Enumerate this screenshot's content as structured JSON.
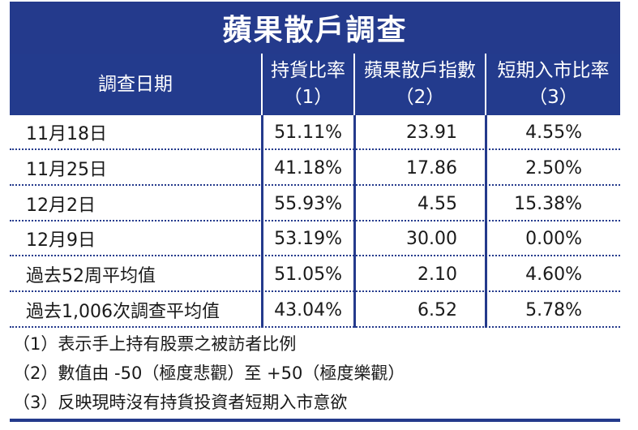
{
  "title": "蘋果散戶調查",
  "headers": [
    {
      "line1": "調查日期",
      "line2": ""
    },
    {
      "line1": "持貨比率",
      "line2": "（1）"
    },
    {
      "line1": "蘋果散戶指數",
      "line2": "（2）"
    },
    {
      "line1": "短期入市比率",
      "line2": "（3）"
    }
  ],
  "rows": [
    {
      "date": "11月18日",
      "holding": "51.11%",
      "index": "23.91",
      "short_term": "4.55%"
    },
    {
      "date": "11月25日",
      "holding": "41.18%",
      "index": "17.86",
      "short_term": "2.50%"
    },
    {
      "date": "12月2日",
      "holding": "55.93%",
      "index": "4.55",
      "short_term": "15.38%"
    },
    {
      "date": "12月9日",
      "holding": "53.19%",
      "index": "30.00",
      "short_term": "0.00%"
    },
    {
      "date": "過去52周平均值",
      "holding": "51.05%",
      "index": "2.10",
      "short_term": "4.60%"
    },
    {
      "date": "過去1,006次調查平均值",
      "holding": "43.04%",
      "index": "6.52",
      "short_term": "5.78%"
    }
  ],
  "notes": [
    "（1）表示手上持有股票之被訪者比例",
    "（2）數值由 -50（極度悲觀）至 +50（極度樂觀）",
    "（3）反映現時沒有持貨投資者短期入市意欲"
  ],
  "colors": {
    "navy": "#243a8c",
    "white": "#ffffff",
    "text": "#1a1a1a"
  }
}
